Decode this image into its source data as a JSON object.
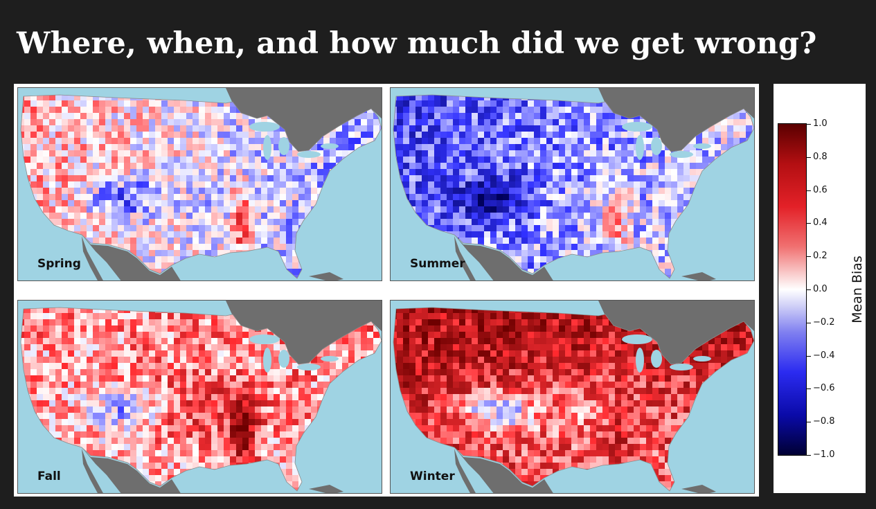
{
  "title": "Where, when, and how much did we get wrong?",
  "panels": [
    {
      "label": "Spring"
    },
    {
      "label": "Summer"
    },
    {
      "label": "Fall"
    },
    {
      "label": "Winter"
    }
  ],
  "legend": {
    "title": "Mean Bias",
    "range": [
      -1.0,
      1.0
    ],
    "ticks": [
      "1.0",
      "0.8",
      "0.6",
      "0.4",
      "0.2",
      "0.0",
      "−0.2",
      "−0.4",
      "−0.6",
      "−0.8",
      "−1.0"
    ]
  },
  "colors": {
    "background": "#1e1e1e",
    "ocean": "#9fd3e3",
    "land_neighbors": "#6e6e6e",
    "bias_positive": "#e32128",
    "bias_negative": "#2b2bf0",
    "bias_zero": "#ffffff"
  }
}
